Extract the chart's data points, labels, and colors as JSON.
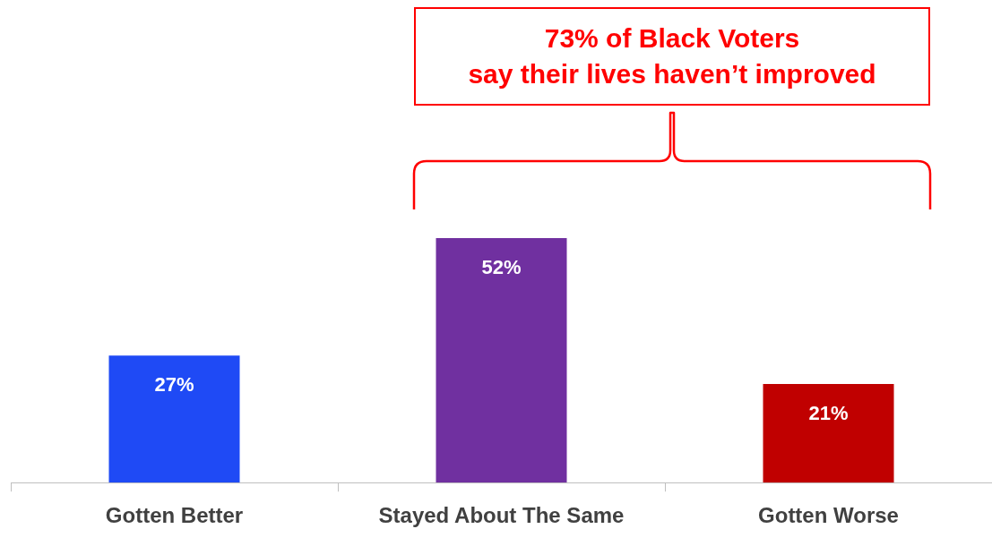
{
  "chart_data": {
    "type": "bar",
    "categories": [
      "Gotten Better",
      "Stayed About The Same",
      "Gotten Worse"
    ],
    "values": [
      27,
      52,
      21
    ],
    "colors": [
      "#1f4af5",
      "#7030a0",
      "#c00000"
    ],
    "value_labels": [
      "27%",
      "52%",
      "21%"
    ],
    "annotations": [
      "73% of Black Voters\nsay their lives haven’t improved"
    ]
  }
}
